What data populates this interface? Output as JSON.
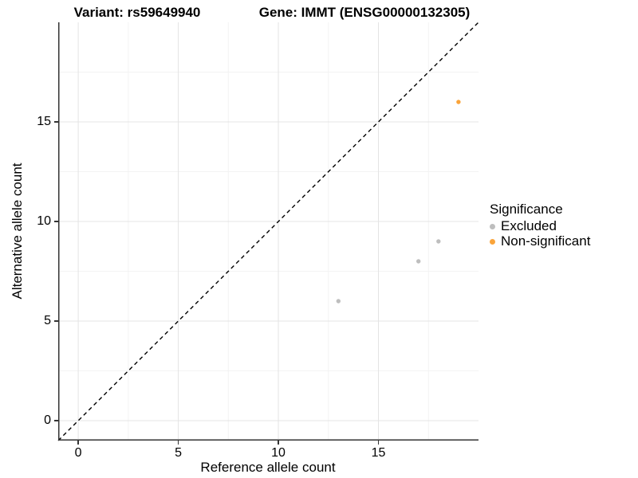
{
  "header": {
    "variant_title": "Variant: rs59649940",
    "gene_title": "Gene: IMMT (ENSG00000132305)"
  },
  "chart_data": {
    "type": "scatter",
    "titles": {
      "variant": "Variant: rs59649940",
      "gene": "Gene: IMMT (ENSG00000132305)"
    },
    "xlabel": "Reference allele count",
    "ylabel": "Alternative allele count",
    "xlim": [
      -1,
      20
    ],
    "ylim": [
      -1,
      20
    ],
    "xticks": [
      0,
      5,
      10,
      15
    ],
    "yticks": [
      0,
      5,
      10,
      15
    ],
    "xtick_labels": [
      "0",
      "5",
      "10",
      "15"
    ],
    "ytick_labels": [
      "0",
      "5",
      "10",
      "15"
    ],
    "grid_minor": [
      2.5,
      7.5,
      12.5,
      17.5
    ],
    "grid": "on",
    "identity_line": {
      "style": "dashed",
      "color": "#000000",
      "equation": "y = x"
    },
    "series": [
      {
        "name": "Excluded",
        "color": "#BEBEBE",
        "points": [
          [
            13,
            6
          ],
          [
            17,
            8
          ],
          [
            18,
            9
          ]
        ]
      },
      {
        "name": "Non-significant",
        "color": "#FAA43A",
        "points": [
          [
            19,
            16
          ]
        ]
      }
    ],
    "colors": {
      "grid_major": "#E4E4E4",
      "grid_minor": "#F3F3F3",
      "axis": "#333333",
      "background": "#FFFFFF"
    },
    "legend_position": "right"
  },
  "legend": {
    "title": "Significance",
    "items": [
      {
        "label": "Excluded",
        "color": "#BEBEBE"
      },
      {
        "label": "Non-significant",
        "color": "#FAA43A"
      }
    ]
  }
}
